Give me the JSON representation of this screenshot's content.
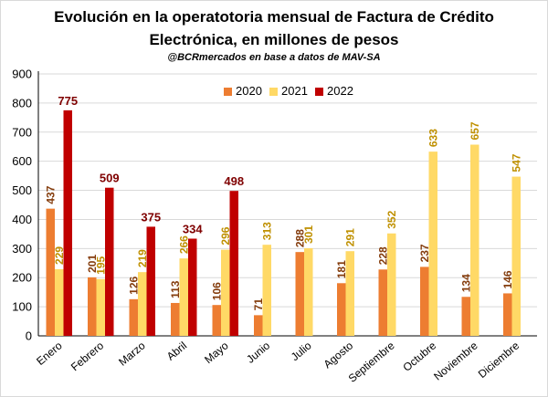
{
  "title_line1": "Evolución en la operatotoria mensual de Factura de Crédito",
  "title_line2": "Electrónica, en millones de pesos",
  "subtitle": "@BCRmercados en base a datos de MAV-SA",
  "colors": {
    "2020": "#ed7d31",
    "2021": "#ffd966",
    "2022": "#c00000",
    "label2020": "#843c0c",
    "label2021": "#bf9000",
    "label2022": "#7f0000",
    "grid": "#d9d9d9",
    "axis": "#000000"
  },
  "chart_data": {
    "type": "bar",
    "categories": [
      "Enero",
      "Febrero",
      "Marzo",
      "Abril",
      "Mayo",
      "Junio",
      "Julio",
      "Agosto",
      "Septiembre",
      "Octubre",
      "Noviembre",
      "Diciembre"
    ],
    "series": [
      {
        "name": "2020",
        "values": [
          437,
          201,
          126,
          113,
          106,
          71,
          288,
          181,
          228,
          237,
          134,
          146
        ]
      },
      {
        "name": "2021",
        "values": [
          229,
          195,
          219,
          266,
          296,
          313,
          301,
          291,
          352,
          633,
          657,
          547
        ]
      },
      {
        "name": "2022",
        "values": [
          775,
          509,
          375,
          334,
          498,
          null,
          null,
          null,
          null,
          null,
          null,
          null
        ]
      }
    ],
    "ylim": [
      0,
      900
    ],
    "yticks": [
      0,
      100,
      200,
      300,
      400,
      500,
      600,
      700,
      800,
      900
    ],
    "grid": true,
    "legend": "top-center"
  }
}
